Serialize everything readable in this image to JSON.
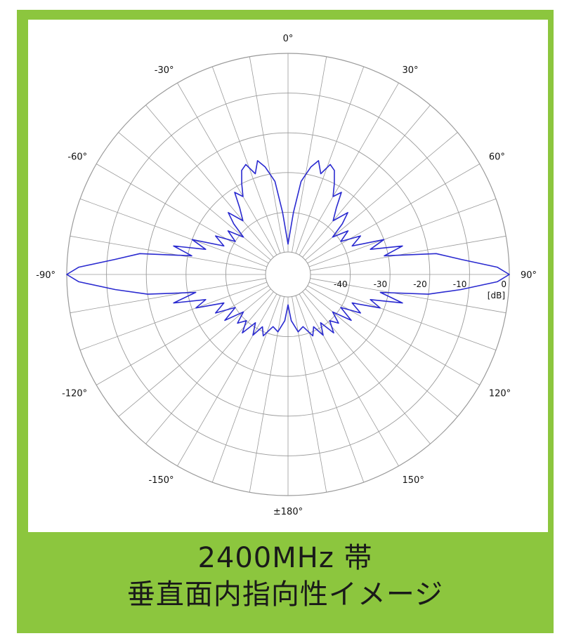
{
  "caption": {
    "line1": "2400MHz 帯",
    "line2": "垂直面内指向性イメージ"
  },
  "colors": {
    "frame": "#8cc63e",
    "pattern": "#2a2ad0",
    "grid": "#9a9a9a"
  },
  "chart_data": {
    "type": "polar-line",
    "title": "",
    "angle_labels": [
      {
        "angle": 0,
        "text": "0°"
      },
      {
        "angle": 30,
        "text": "30°"
      },
      {
        "angle": 60,
        "text": "60°"
      },
      {
        "angle": 90,
        "text": "90°"
      },
      {
        "angle": 120,
        "text": "120°"
      },
      {
        "angle": 150,
        "text": "150°"
      },
      {
        "angle": 180,
        "text": "±180°"
      },
      {
        "angle": -150,
        "text": "-150°"
      },
      {
        "angle": -120,
        "text": "-120°"
      },
      {
        "angle": -90,
        "text": "-90°"
      },
      {
        "angle": -60,
        "text": "-60°"
      },
      {
        "angle": -30,
        "text": "-30°"
      }
    ],
    "radial_axis": {
      "unit": "[dB]",
      "min": -50,
      "max": 0,
      "rings": [
        -40,
        -30,
        -20,
        -10,
        0
      ],
      "ring_labels": [
        "-40",
        "-30",
        "-20",
        "-10",
        "0"
      ]
    },
    "spoke_step_deg": 10,
    "series": [
      {
        "points": [
          {
            "angle": 0,
            "db": -48
          },
          {
            "angle": 5,
            "db": -40
          },
          {
            "angle": 8,
            "db": -32
          },
          {
            "angle": 12,
            "db": -28
          },
          {
            "angle": 15,
            "db": -26
          },
          {
            "angle": 18,
            "db": -29
          },
          {
            "angle": 21,
            "db": -26
          },
          {
            "angle": 24,
            "db": -27
          },
          {
            "angle": 27,
            "db": -30
          },
          {
            "angle": 30,
            "db": -33
          },
          {
            "angle": 33,
            "db": -31
          },
          {
            "angle": 36,
            "db": -35
          },
          {
            "angle": 40,
            "db": -38
          },
          {
            "angle": 44,
            "db": -34
          },
          {
            "angle": 47,
            "db": -37
          },
          {
            "angle": 50,
            "db": -41
          },
          {
            "angle": 54,
            "db": -37
          },
          {
            "angle": 58,
            "db": -40
          },
          {
            "angle": 62,
            "db": -35
          },
          {
            "angle": 66,
            "db": -38
          },
          {
            "angle": 70,
            "db": -30
          },
          {
            "angle": 73,
            "db": -34
          },
          {
            "angle": 76,
            "db": -26
          },
          {
            "angle": 79,
            "db": -31
          },
          {
            "angle": 82,
            "db": -18
          },
          {
            "angle": 85,
            "db": -12
          },
          {
            "angle": 88,
            "db": -3
          },
          {
            "angle": 90,
            "db": 0
          },
          {
            "angle": 92,
            "db": -3
          },
          {
            "angle": 95,
            "db": -12
          },
          {
            "angle": 98,
            "db": -20
          },
          {
            "angle": 101,
            "db": -32
          },
          {
            "angle": 104,
            "db": -26
          },
          {
            "angle": 107,
            "db": -34
          },
          {
            "angle": 110,
            "db": -31
          },
          {
            "angle": 114,
            "db": -38
          },
          {
            "angle": 118,
            "db": -35
          },
          {
            "angle": 122,
            "db": -40
          },
          {
            "angle": 126,
            "db": -36
          },
          {
            "angle": 130,
            "db": -41
          },
          {
            "angle": 134,
            "db": -38
          },
          {
            "angle": 138,
            "db": -40
          },
          {
            "angle": 142,
            "db": -37
          },
          {
            "angle": 146,
            "db": -41
          },
          {
            "angle": 150,
            "db": -38
          },
          {
            "angle": 154,
            "db": -41
          },
          {
            "angle": 158,
            "db": -39
          },
          {
            "angle": 164,
            "db": -42
          },
          {
            "angle": 170,
            "db": -41
          },
          {
            "angle": 176,
            "db": -44
          },
          {
            "angle": 180,
            "db": -48
          }
        ],
        "symmetric": true
      }
    ],
    "grid": true,
    "legend": "none"
  }
}
